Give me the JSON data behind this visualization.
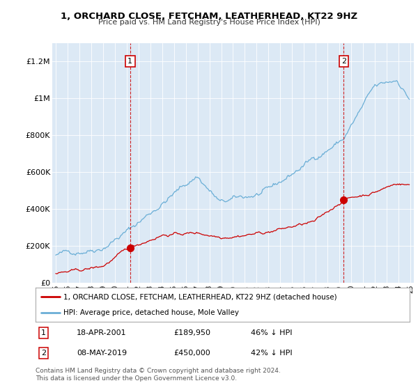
{
  "title": "1, ORCHARD CLOSE, FETCHAM, LEATHERHEAD, KT22 9HZ",
  "subtitle": "Price paid vs. HM Land Registry's House Price Index (HPI)",
  "background_color": "#dce9f5",
  "plot_bg_color": "#dce9f5",
  "hpi_color": "#6aaed6",
  "price_color": "#cc0000",
  "vline_color": "#cc0000",
  "ylabel_ticks": [
    "£0",
    "£200K",
    "£400K",
    "£600K",
    "£800K",
    "£1M",
    "£1.2M"
  ],
  "ytick_values": [
    0,
    200000,
    400000,
    600000,
    800000,
    1000000,
    1200000
  ],
  "ylim": [
    0,
    1300000
  ],
  "xlim_start": 1994.7,
  "xlim_end": 2025.3,
  "transaction1": {
    "date": 2001.29,
    "price": 189950,
    "label": "1"
  },
  "transaction2": {
    "date": 2019.37,
    "price": 450000,
    "label": "2"
  },
  "legend_entry1": "1, ORCHARD CLOSE, FETCHAM, LEATHERHEAD, KT22 9HZ (detached house)",
  "legend_entry2": "HPI: Average price, detached house, Mole Valley",
  "footer": "Contains HM Land Registry data © Crown copyright and database right 2024.\nThis data is licensed under the Open Government Licence v3.0.",
  "table_rows": [
    {
      "num": "1",
      "date": "18-APR-2001",
      "price": "£189,950",
      "pct": "46% ↓ HPI"
    },
    {
      "num": "2",
      "date": "08-MAY-2019",
      "price": "£450,000",
      "pct": "42% ↓ HPI"
    }
  ]
}
